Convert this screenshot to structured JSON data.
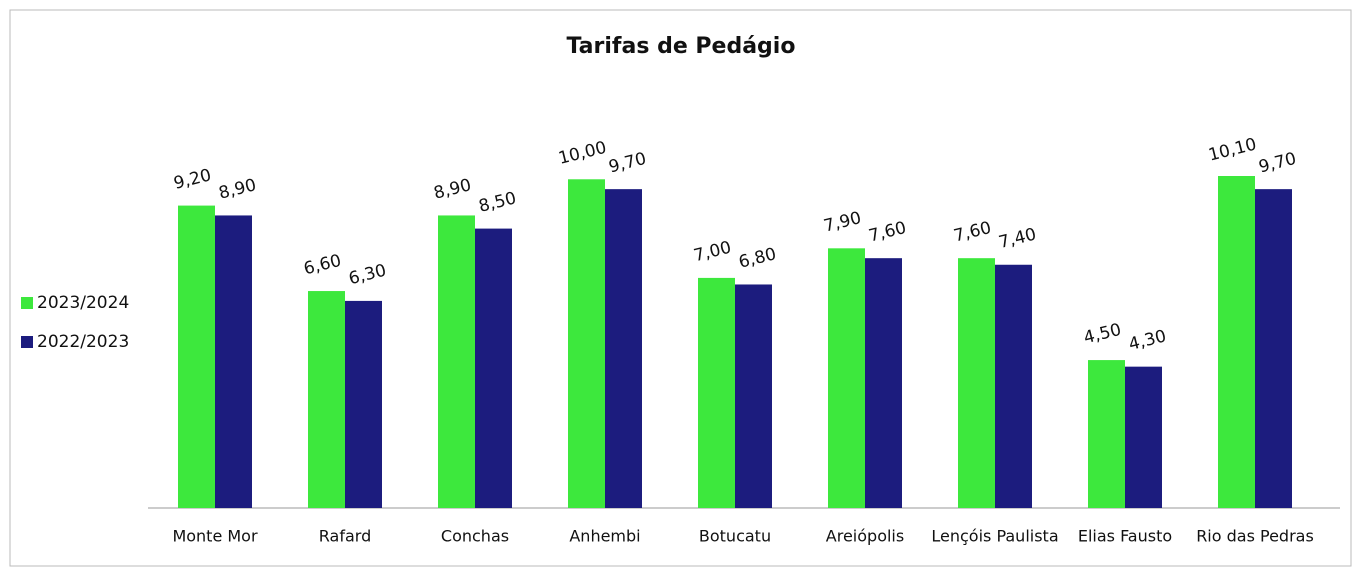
{
  "chart_data": {
    "type": "bar",
    "title": "Tarifas de Pedágio",
    "categories": [
      "Monte Mor",
      "Rafard",
      "Conchas",
      "Anhembi",
      "Botucatu",
      "Areiópolis",
      "Lençóis Paulista",
      "Elias Fausto",
      "Rio das Pedras"
    ],
    "series": [
      {
        "name": "2023/2024",
        "color": "#3de83d",
        "values": [
          9.2,
          6.6,
          8.9,
          10.0,
          7.0,
          7.9,
          7.6,
          4.5,
          10.1
        ],
        "value_labels": [
          "9,20",
          "6,60",
          "8,90",
          "10,00",
          "7,00",
          "7,90",
          "7,60",
          "4,50",
          "10,10"
        ]
      },
      {
        "name": "2022/2023",
        "color": "#1c1c7e",
        "values": [
          8.9,
          6.3,
          8.5,
          9.7,
          6.8,
          7.6,
          7.4,
          4.3,
          9.7
        ],
        "value_labels": [
          "8,90",
          "6,30",
          "8,50",
          "9,70",
          "6,80",
          "7,60",
          "7,40",
          "4,30",
          "9,70"
        ]
      }
    ],
    "legend": "left"
  }
}
